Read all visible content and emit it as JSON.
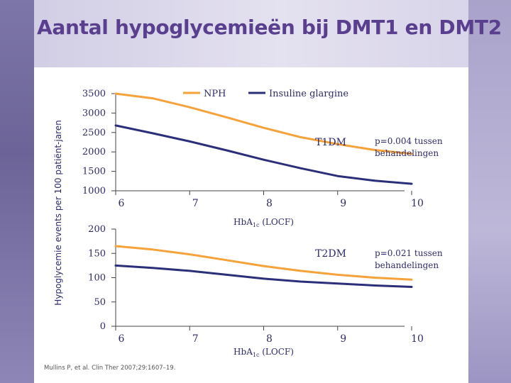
{
  "title": "Aantal hypoglycemieën bij DMT1 en DMT2",
  "ylabel": "Hypoglycemie events per 100 patiënt-jaren",
  "citation": "Mullins P, et al. Clin Ther 2007;29:1607–19.",
  "colors": {
    "nph": "#f5a23a",
    "glargine": "#2b2f7a",
    "axis": "#444444",
    "text": "#2e2a6a"
  },
  "chart_data": [
    {
      "type": "line",
      "panel": "T1DM",
      "label": "T1DM",
      "annotation": "p=0.004 tussen behandelingen",
      "xlabel": "HbA1c (LOCF)",
      "ylabel": "Hypoglycemie events per 100 patiënt-jaren",
      "x_ticks": [
        6,
        7,
        8,
        9,
        10
      ],
      "y_ticks": [
        1000,
        1500,
        2000,
        2500,
        3000,
        3500
      ],
      "xlim": [
        6,
        10
      ],
      "ylim": [
        1000,
        3500
      ],
      "legend": {
        "position": "top",
        "entries": [
          "NPH",
          "Insuline glargine"
        ]
      },
      "series": [
        {
          "name": "NPH",
          "x": [
            6,
            6.5,
            7,
            7.5,
            8,
            8.5,
            9,
            9.5,
            10
          ],
          "values": [
            3600,
            3380,
            3150,
            2890,
            2620,
            2380,
            2200,
            2050,
            1950
          ]
        },
        {
          "name": "Insuline glargine",
          "x": [
            6,
            6.5,
            7,
            7.5,
            8,
            8.5,
            9,
            9.5,
            10
          ],
          "values": [
            2680,
            2480,
            2270,
            2040,
            1800,
            1580,
            1380,
            1260,
            1180
          ]
        }
      ]
    },
    {
      "type": "line",
      "panel": "T2DM",
      "label": "T2DM",
      "annotation": "p=0.021 tussen behandelingen",
      "xlabel": "HbA1c (LOCF)",
      "ylabel": "Hypoglycemie events per 100 patiënt-jaren",
      "x_ticks": [
        6,
        7,
        8,
        9,
        10
      ],
      "y_ticks": [
        0,
        50,
        100,
        150,
        200
      ],
      "xlim": [
        6,
        10
      ],
      "ylim": [
        0,
        200
      ],
      "series": [
        {
          "name": "NPH",
          "x": [
            6,
            6.5,
            7,
            7.5,
            8,
            8.5,
            9,
            9.5,
            10
          ],
          "values": [
            165,
            158,
            148,
            136,
            124,
            114,
            106,
            100,
            96
          ]
        },
        {
          "name": "Insuline glargine",
          "x": [
            6,
            6.5,
            7,
            7.5,
            8,
            8.5,
            9,
            9.5,
            10
          ],
          "values": [
            125,
            120,
            114,
            106,
            98,
            92,
            88,
            84,
            81
          ]
        }
      ]
    }
  ]
}
